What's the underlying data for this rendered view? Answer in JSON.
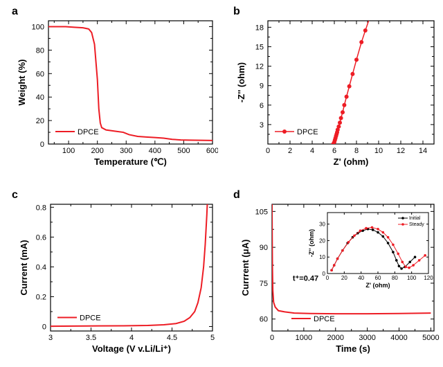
{
  "colors": {
    "series": "#ed1c24",
    "axis": "#000000",
    "bg": "#ffffff",
    "inset_initial": "#000000",
    "inset_steady": "#ed1c24"
  },
  "panel_a": {
    "label": "a",
    "xlabel": "Temperature (℃)",
    "ylabel": "Weight (%)",
    "legend": "DPCE",
    "xlim": [
      30,
      600
    ],
    "ylim": [
      0,
      105
    ],
    "xticks": [
      100,
      200,
      300,
      400,
      500,
      600
    ],
    "yticks": [
      0,
      20,
      40,
      60,
      80,
      100
    ],
    "line_width": 2,
    "data": [
      [
        30,
        100
      ],
      [
        60,
        100
      ],
      [
        90,
        100
      ],
      [
        120,
        99.5
      ],
      [
        150,
        99
      ],
      [
        170,
        98
      ],
      [
        180,
        95
      ],
      [
        190,
        85
      ],
      [
        200,
        55
      ],
      [
        205,
        30
      ],
      [
        210,
        18
      ],
      [
        215,
        14
      ],
      [
        230,
        12
      ],
      [
        260,
        11
      ],
      [
        290,
        10
      ],
      [
        310,
        8
      ],
      [
        340,
        6.5
      ],
      [
        370,
        6
      ],
      [
        400,
        5.5
      ],
      [
        430,
        5
      ],
      [
        460,
        4
      ],
      [
        490,
        3.5
      ],
      [
        520,
        3.3
      ],
      [
        560,
        3.2
      ],
      [
        600,
        3
      ]
    ]
  },
  "panel_b": {
    "label": "b",
    "xlabel": "Z' (ohm)",
    "ylabel": "-Z'' (ohm)",
    "legend": "DPCE",
    "xlim": [
      0,
      15
    ],
    "ylim": [
      0,
      19
    ],
    "xticks": [
      0,
      2,
      4,
      6,
      8,
      10,
      12,
      14
    ],
    "yticks": [
      3,
      6,
      9,
      12,
      15,
      18
    ],
    "marker_size": 3,
    "line_width": 1.5,
    "data": [
      [
        5.9,
        0.0
      ],
      [
        6.0,
        0.3
      ],
      [
        6.05,
        0.6
      ],
      [
        6.1,
        0.9
      ],
      [
        6.15,
        1.2
      ],
      [
        6.2,
        1.5
      ],
      [
        6.25,
        1.8
      ],
      [
        6.3,
        2.2
      ],
      [
        6.4,
        2.7
      ],
      [
        6.5,
        3.3
      ],
      [
        6.6,
        4.0
      ],
      [
        6.75,
        4.9
      ],
      [
        6.9,
        6.0
      ],
      [
        7.1,
        7.3
      ],
      [
        7.35,
        8.9
      ],
      [
        7.65,
        10.8
      ],
      [
        8.0,
        13.0
      ],
      [
        8.45,
        15.7
      ],
      [
        8.8,
        17.5
      ],
      [
        9.2,
        19.5
      ]
    ]
  },
  "panel_c": {
    "label": "c",
    "xlabel": "Voltage (V v.Li/Li⁺)",
    "ylabel": "Current (mA)",
    "legend": "DPCE",
    "xlim": [
      3.0,
      5.0
    ],
    "ylim": [
      -0.03,
      0.82
    ],
    "xticks": [
      3.0,
      3.5,
      4.0,
      4.5,
      5.0
    ],
    "yticks": [
      0.0,
      0.2,
      0.4,
      0.6,
      0.8
    ],
    "line_width": 2,
    "data": [
      [
        3.0,
        0.002
      ],
      [
        3.3,
        0.003
      ],
      [
        3.6,
        0.004
      ],
      [
        3.9,
        0.005
      ],
      [
        4.2,
        0.007
      ],
      [
        4.4,
        0.012
      ],
      [
        4.55,
        0.02
      ],
      [
        4.65,
        0.035
      ],
      [
        4.72,
        0.06
      ],
      [
        4.78,
        0.1
      ],
      [
        4.82,
        0.16
      ],
      [
        4.86,
        0.26
      ],
      [
        4.89,
        0.4
      ],
      [
        4.91,
        0.55
      ],
      [
        4.93,
        0.75
      ],
      [
        4.95,
        1.0
      ]
    ]
  },
  "panel_d": {
    "label": "d",
    "xlabel": "Time (s)",
    "ylabel": "Currrent (μA)",
    "legend": "DPCE",
    "annotation": "t⁺=0.47",
    "xlim": [
      0,
      5100
    ],
    "ylim": [
      55,
      108
    ],
    "xticks": [
      0,
      1000,
      2000,
      3000,
      4000,
      5000
    ],
    "yticks": [
      60,
      75,
      90,
      105
    ],
    "line_width": 2,
    "data": [
      [
        0,
        108
      ],
      [
        5,
        95
      ],
      [
        12,
        82
      ],
      [
        25,
        72
      ],
      [
        50,
        67
      ],
      [
        100,
        65
      ],
      [
        200,
        63.5
      ],
      [
        400,
        63
      ],
      [
        700,
        62.5
      ],
      [
        1200,
        62.3
      ],
      [
        2000,
        62.2
      ],
      [
        3000,
        62.2
      ],
      [
        4000,
        62.3
      ],
      [
        5000,
        62.5
      ]
    ],
    "inset": {
      "xlabel": "Z' (ohm)",
      "ylabel": "-Z'' (ohm)",
      "xlim": [
        0,
        120
      ],
      "ylim": [
        0,
        37
      ],
      "xticks": [
        0,
        20,
        40,
        60,
        80,
        100,
        120
      ],
      "yticks": [
        0,
        10,
        20,
        30
      ],
      "legend_initial": "Initial",
      "legend_steady": "Steady",
      "marker_size": 1.8,
      "initial": [
        [
          5,
          2
        ],
        [
          8,
          5
        ],
        [
          12,
          9
        ],
        [
          18,
          14
        ],
        [
          24,
          18.5
        ],
        [
          30,
          22
        ],
        [
          36,
          24.5
        ],
        [
          42,
          26
        ],
        [
          48,
          27
        ],
        [
          54,
          26.5
        ],
        [
          60,
          25
        ],
        [
          66,
          22.5
        ],
        [
          72,
          18.5
        ],
        [
          78,
          13
        ],
        [
          82,
          8
        ],
        [
          85,
          4.5
        ],
        [
          88,
          3
        ],
        [
          92,
          4
        ],
        [
          98,
          7
        ],
        [
          104,
          10
        ]
      ],
      "steady": [
        [
          5,
          2
        ],
        [
          8,
          5
        ],
        [
          12,
          9
        ],
        [
          18,
          14
        ],
        [
          25,
          19
        ],
        [
          32,
          23
        ],
        [
          39,
          26
        ],
        [
          46,
          27.5
        ],
        [
          53,
          28
        ],
        [
          60,
          27
        ],
        [
          66,
          25
        ],
        [
          72,
          22
        ],
        [
          78,
          17.5
        ],
        [
          84,
          12
        ],
        [
          89,
          7
        ],
        [
          93,
          4
        ],
        [
          97,
          3.5
        ],
        [
          102,
          5
        ],
        [
          109,
          8
        ],
        [
          116,
          11
        ]
      ]
    }
  }
}
